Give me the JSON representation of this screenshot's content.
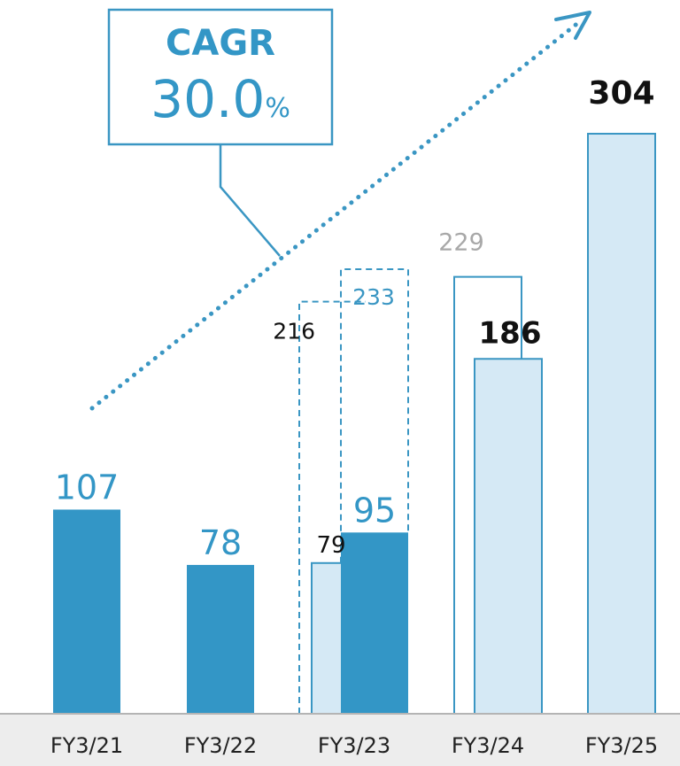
{
  "colors": {
    "actual": "#3396c6",
    "plan_fill": "#d5e9f5",
    "plan_stroke": "#3a96c3",
    "grey_text": "#a8a8a8",
    "dark_text": "#111111",
    "baseline": "#b4b4b4"
  },
  "cagr": {
    "title": "CAGR",
    "value": "30.0",
    "unit": "%"
  },
  "chart_data": {
    "type": "bar",
    "categories": [
      "FY3/21",
      "FY3/22",
      "FY3/23",
      "FY3/24",
      "FY3/25"
    ],
    "series": [
      {
        "values": [
          107,
          78,
          95,
          null,
          null
        ]
      },
      {
        "values": [
          null,
          null,
          79,
          186,
          304
        ]
      }
    ],
    "outlines": [
      {
        "category": "FY3/23",
        "value": 216,
        "label": "216"
      },
      {
        "category": "FY3/23",
        "value": 233,
        "label": "233"
      },
      {
        "category": "FY3/24",
        "value": 229,
        "label": "229"
      }
    ],
    "ylim": [
      0,
      330
    ],
    "grid": false,
    "legend": "none",
    "title": "",
    "xlabel": "",
    "ylabel": ""
  }
}
